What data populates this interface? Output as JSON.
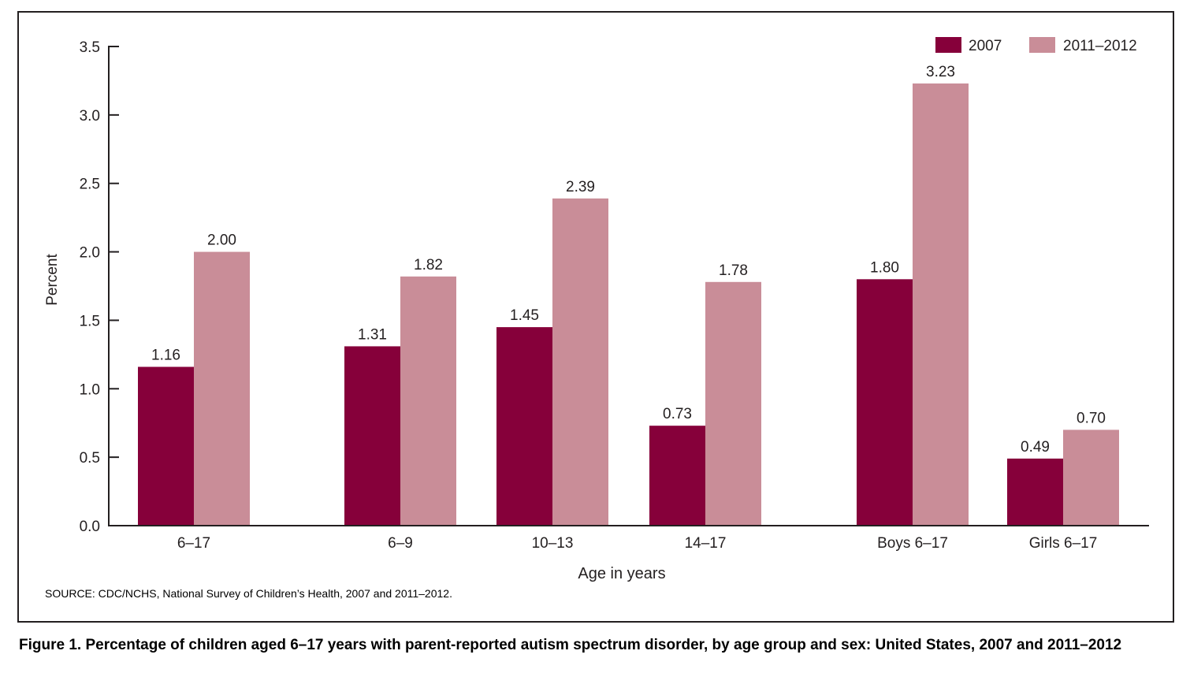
{
  "chart_data": {
    "type": "bar",
    "categories": [
      "6–17",
      "6–9",
      "10–13",
      "14–17",
      "Boys 6–17",
      "Girls 6–17"
    ],
    "series": [
      {
        "name": "2007",
        "values": [
          1.16,
          1.31,
          1.45,
          0.73,
          1.8,
          0.49
        ],
        "labels": [
          "1.16",
          "1.31",
          "1.45",
          "0.73",
          "1.80",
          "0.49"
        ],
        "color": "#86003a"
      },
      {
        "name": "2011–2012",
        "values": [
          2.0,
          1.82,
          2.39,
          1.78,
          3.23,
          0.7
        ],
        "labels": [
          "2.00",
          "1.82",
          "2.39",
          "1.78",
          "3.23",
          "0.70"
        ],
        "color": "#c98d98"
      }
    ],
    "xlabel": "Age in years",
    "ylabel": "Percent",
    "ylim": [
      0,
      3.5
    ],
    "yticks": [
      "0.0",
      "0.5",
      "1.0",
      "1.5",
      "2.0",
      "2.5",
      "3.0",
      "3.5"
    ],
    "grid": false,
    "legend": "top-right"
  },
  "source": "SOURCE: CDC/NCHS, National Survey of Children’s Health, 2007 and 2011–2012.",
  "caption": "Figure 1. Percentage of children aged 6–17 years with parent-reported autism spectrum disorder, by age group and sex: United States, 2007 and 2011–2012"
}
